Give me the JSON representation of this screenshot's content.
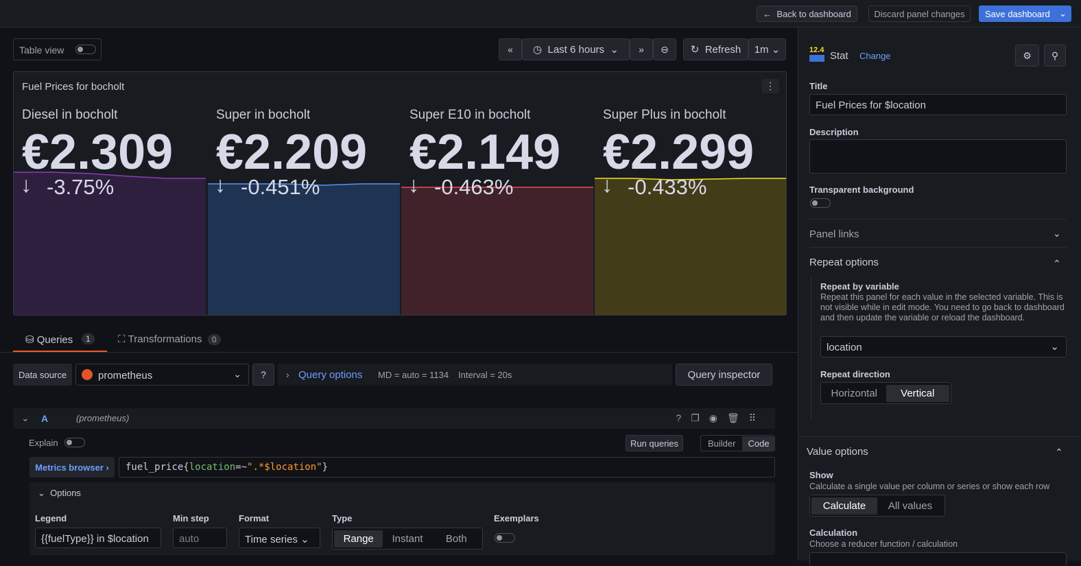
{
  "topbar": {
    "back": "Back to dashboard",
    "discard": "Discard panel changes",
    "save": "Save dashboard"
  },
  "toolbar": {
    "table_view": "Table view",
    "time_range": "Last 6 hours",
    "refresh": "Refresh",
    "interval": "1m"
  },
  "panel": {
    "title": "Fuel Prices for bocholt",
    "stats": [
      {
        "name": "Diesel in bocholt",
        "value": "€2.309",
        "change": "-3.75%"
      },
      {
        "name": "Super in bocholt",
        "value": "€2.209",
        "change": "-0.451%"
      },
      {
        "name": "Super E10 in bocholt",
        "value": "€2.149",
        "change": "-0.463%"
      },
      {
        "name": "Super Plus in bocholt",
        "value": "€2.299",
        "change": "-0.433%"
      }
    ]
  },
  "tabs": [
    {
      "label": "Queries",
      "count": "1"
    },
    {
      "label": "Transformations",
      "count": "0"
    }
  ],
  "query": {
    "datasource_label": "Data source",
    "datasource": "prometheus",
    "options": "Query options",
    "md": "MD = auto = 1134",
    "interval": "Interval = 20s",
    "inspector": "Query inspector",
    "ref": "A",
    "ref_source": "(prometheus)",
    "explain": "Explain",
    "run": "Run queries",
    "modes": [
      "Builder",
      "Code"
    ],
    "metrics_browser": "Metrics browser",
    "expr": [
      "fuel_price{",
      "location",
      "=~",
      "\".*$location\"",
      "}"
    ],
    "options_title": "Options",
    "legend_label": "Legend",
    "legend": "{{fuelType}} in $location",
    "min_step_label": "Min step",
    "min_step": "auto",
    "format_label": "Format",
    "format": "Time series",
    "type_label": "Type",
    "types": [
      "Range",
      "Instant",
      "Both"
    ],
    "exemplars": "Exemplars"
  },
  "sidebar": {
    "version": "12.4",
    "viz": "Stat",
    "change": "Change",
    "title_label": "Title",
    "title": "Fuel Prices for $location",
    "description_label": "Description",
    "transparent": "Transparent background",
    "panel_links": "Panel links",
    "repeat_options": "Repeat options",
    "repeat_by": "Repeat by variable",
    "repeat_help": "Repeat this panel for each value in the selected variable. This is not visible while in edit mode. You need to go back to dashboard and then update the variable or reload the dashboard.",
    "repeat_var": "location",
    "repeat_direction": "Repeat direction",
    "directions": [
      "Horizontal",
      "Vertical"
    ],
    "value_options": "Value options",
    "show_label": "Show",
    "show_help": "Calculate a single value per column or series or show each row",
    "show_modes": [
      "Calculate",
      "All values"
    ],
    "calculation_label": "Calculation",
    "calculation_help": "Choose a reducer function / calculation"
  }
}
